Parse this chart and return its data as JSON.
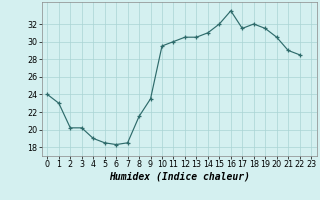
{
  "x_data": [
    0,
    1,
    2,
    3,
    4,
    5,
    6,
    7,
    8,
    9,
    10,
    11,
    12,
    13,
    14,
    15,
    16,
    17,
    18,
    19,
    20,
    21,
    22
  ],
  "y_data": [
    24,
    23,
    20.2,
    20.2,
    19,
    18.5,
    18.3,
    18.5,
    21.5,
    23.5,
    29.5,
    30,
    30.5,
    30.5,
    31,
    32,
    33.5,
    31.5,
    32,
    31.5,
    30.5,
    29,
    28.5
  ],
  "xlabel": "Humidex (Indice chaleur)",
  "ylim": [
    17,
    34.5
  ],
  "xlim": [
    -0.5,
    23.5
  ],
  "yticks": [
    18,
    20,
    22,
    24,
    26,
    28,
    30,
    32
  ],
  "xtick_labels": [
    "0",
    "1",
    "2",
    "3",
    "4",
    "5",
    "6",
    "7",
    "8",
    "9",
    "10",
    "11",
    "12",
    "13",
    "14",
    "15",
    "16",
    "17",
    "18",
    "19",
    "20",
    "21",
    "22",
    "23"
  ],
  "line_color": "#2e6b6b",
  "marker": "+",
  "bg_color": "#d4f0f0",
  "grid_color": "#aad4d4",
  "spine_color": "#888888",
  "tick_fontsize": 5.8,
  "xlabel_fontsize": 7.0
}
